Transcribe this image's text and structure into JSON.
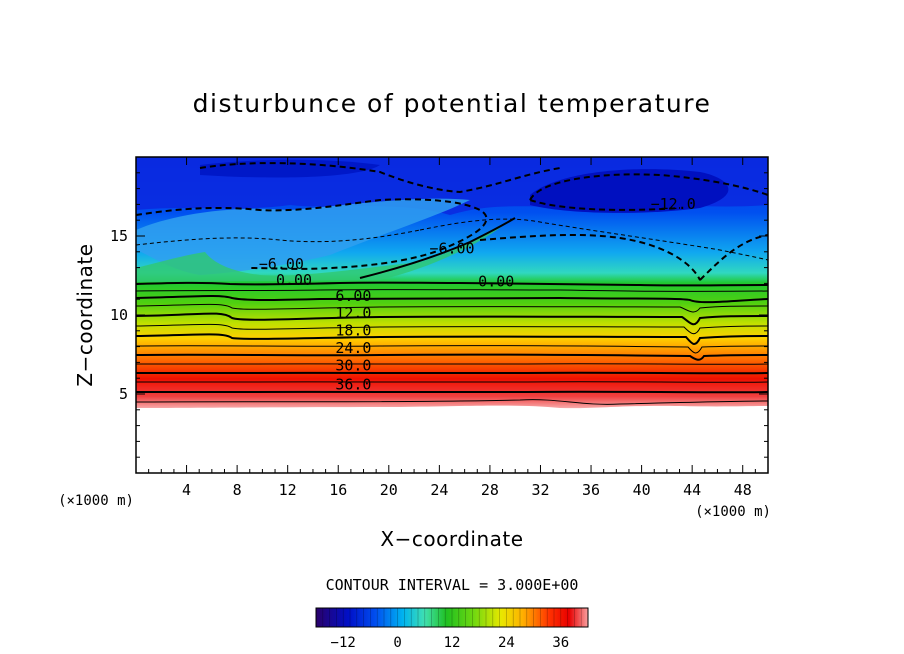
{
  "chart_data": {
    "type": "heatmap",
    "title": "disturbunce of potential temperature",
    "xlabel": "X−coordinate",
    "ylabel": "Z−coordinate",
    "x_unit": "(×1000 m)",
    "z_unit": "(×1000 m)",
    "xlim": [
      0,
      50
    ],
    "ylim": [
      0,
      20
    ],
    "x_ticks": [
      4,
      8,
      12,
      16,
      20,
      24,
      28,
      32,
      36,
      40,
      44,
      48
    ],
    "y_ticks": [
      5,
      10,
      15
    ],
    "terrain_top_z": 4.2,
    "contour_interval_text": "CONTOUR INTERVAL = 3.000E+00",
    "contour_levels": [
      -12,
      -9,
      -6,
      -3,
      0,
      3,
      6,
      9,
      12,
      15,
      18,
      21,
      24,
      27,
      30,
      33,
      36,
      39
    ],
    "contour_labels": [
      {
        "text": "−12.0",
        "x": 42.5,
        "z": 16.7
      },
      {
        "text": "−6.00",
        "x": 11.5,
        "z": 12.9
      },
      {
        "text": "−6.00",
        "x": 25.0,
        "z": 13.9
      },
      {
        "text": "0.00",
        "x": 12.5,
        "z": 11.9
      },
      {
        "text": "0.00",
        "x": 28.5,
        "z": 11.8
      },
      {
        "text": "6.00",
        "x": 17.2,
        "z": 10.9
      },
      {
        "text": "12.0",
        "x": 17.2,
        "z": 9.8
      },
      {
        "text": "18.0",
        "x": 17.2,
        "z": 8.7
      },
      {
        "text": "24.0",
        "x": 17.2,
        "z": 7.6
      },
      {
        "text": "30.0",
        "x": 17.2,
        "z": 6.5
      },
      {
        "text": "36.0",
        "x": 17.2,
        "z": 5.3
      }
    ],
    "colorbar": {
      "min": -18,
      "max": 42,
      "ticks": [
        -12,
        0,
        12,
        24,
        36
      ],
      "tick_labels": [
        "−12",
        "0",
        "12",
        "24",
        "36"
      ]
    }
  }
}
